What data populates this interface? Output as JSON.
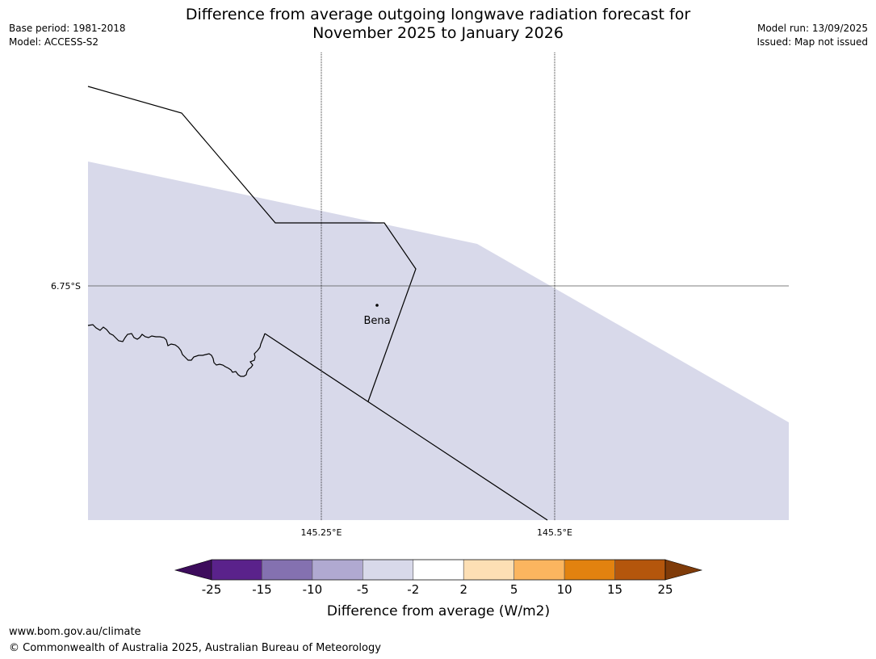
{
  "title_line1": "Difference from average outgoing longwave radiation forecast for",
  "title_line2": "November 2025 to January 2026",
  "left_meta": {
    "base_period": "Base period: 1981-2018",
    "model": "Model: ACCESS-S2"
  },
  "right_meta": {
    "model_run": "Model run: 13/09/2025",
    "issued": "Issued: Map not issued"
  },
  "map": {
    "lat_label": "6.75°S",
    "lon_labels": [
      "145.25°E",
      "145.5°E"
    ],
    "place": {
      "name": "Bena"
    },
    "shaded_category": "-5 to -2",
    "shaded_color": "#d8d9ea"
  },
  "colorbar": {
    "title": "Difference from average (W/m2)",
    "ticks": [
      "-25",
      "-15",
      "-10",
      "-5",
      "-2",
      "2",
      "5",
      "10",
      "15",
      "25"
    ],
    "colors": [
      "#5a228b",
      "#8471b0",
      "#b0a9d1",
      "#d8d9ea",
      "#ffffff",
      "#fddfb4",
      "#fbb55f",
      "#e2820f",
      "#b4560c"
    ],
    "under_color": "#3d0c5c",
    "over_color": "#7f3b09"
  },
  "footer": {
    "url": "www.bom.gov.au/climate",
    "copyright": "© Commonwealth of Australia 2025, Australian Bureau of Meteorology"
  }
}
